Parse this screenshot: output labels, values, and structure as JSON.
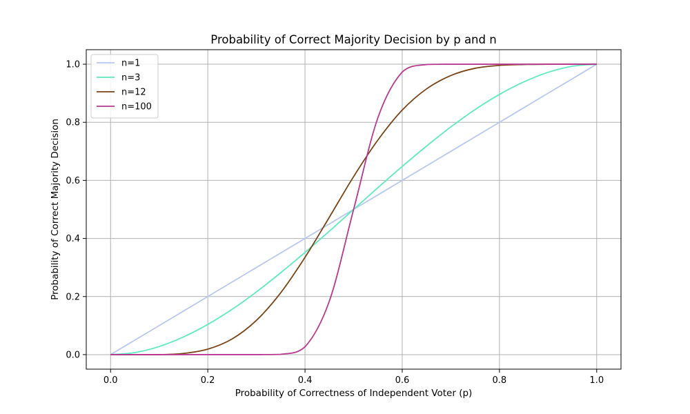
{
  "chart_data": {
    "type": "line",
    "title": "Probability of Correct Majority Decision by p and n",
    "xlabel": "Probability of Correctness of Independent Voter (p)",
    "ylabel": "Probability of Correct Majority Decision",
    "xlim": [
      -0.05,
      1.05
    ],
    "ylim": [
      -0.05,
      1.05
    ],
    "x_ticks": [
      0.0,
      0.2,
      0.4,
      0.6,
      0.8,
      1.0
    ],
    "y_ticks": [
      0.0,
      0.2,
      0.4,
      0.6,
      0.8,
      1.0
    ],
    "x_tick_labels": [
      "0.0",
      "0.2",
      "0.4",
      "0.6",
      "0.8",
      "1.0"
    ],
    "y_tick_labels": [
      "0.0",
      "0.2",
      "0.4",
      "0.6",
      "0.8",
      "1.0"
    ],
    "grid": true,
    "legend_position": "top-left",
    "x": [
      0.0,
      0.05,
      0.1,
      0.15,
      0.2,
      0.25,
      0.3,
      0.35,
      0.4,
      0.45,
      0.5,
      0.55,
      0.6,
      0.65,
      0.7,
      0.75,
      0.8,
      0.85,
      0.9,
      0.95,
      1.0
    ],
    "series": [
      {
        "name": "n=1",
        "color": "#b7c8f0",
        "values": [
          0.0,
          0.05,
          0.1,
          0.15,
          0.2,
          0.25,
          0.3,
          0.35,
          0.4,
          0.45,
          0.5,
          0.55,
          0.6,
          0.65,
          0.7,
          0.75,
          0.8,
          0.85,
          0.9,
          0.95,
          1.0
        ]
      },
      {
        "name": "n=3",
        "color": "#5eeac0",
        "values": [
          0.0,
          0.007,
          0.028,
          0.061,
          0.104,
          0.156,
          0.216,
          0.282,
          0.352,
          0.425,
          0.5,
          0.575,
          0.648,
          0.718,
          0.784,
          0.844,
          0.896,
          0.939,
          0.972,
          0.993,
          1.0
        ]
      },
      {
        "name": "n=12",
        "color": "#7b4214",
        "values": [
          0.0,
          0.0,
          0.0,
          0.004,
          0.019,
          0.054,
          0.118,
          0.213,
          0.335,
          0.473,
          0.613,
          0.739,
          0.842,
          0.915,
          0.961,
          0.986,
          0.996,
          0.999,
          1.0,
          1.0,
          1.0
        ]
      },
      {
        "name": "n=100",
        "color": "#b8388e",
        "values": [
          0.0,
          0.0,
          0.0,
          0.0,
          0.0,
          0.0,
          0.0,
          0.001,
          0.027,
          0.184,
          0.5,
          0.816,
          0.973,
          0.999,
          1.0,
          1.0,
          1.0,
          1.0,
          1.0,
          1.0,
          1.0
        ]
      }
    ]
  }
}
